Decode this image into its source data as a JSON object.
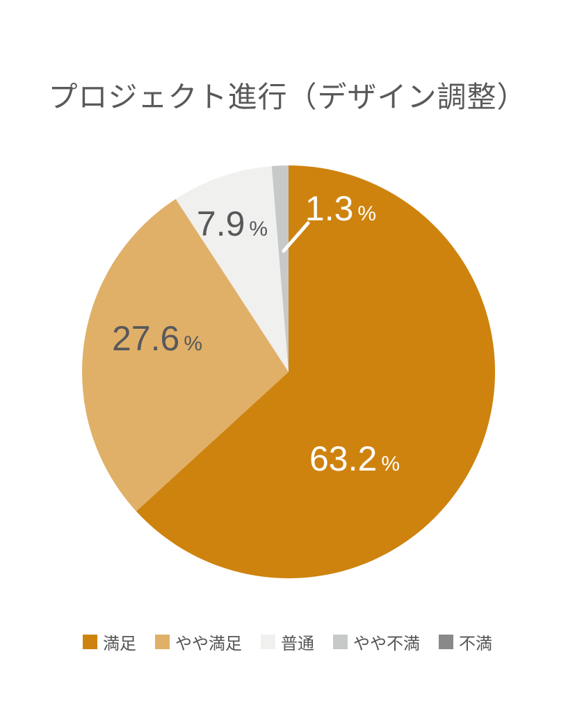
{
  "title": "プロジェクト進行（デザイン調整）",
  "chart_data": {
    "type": "pie",
    "title": "プロジェクト進行（デザイン調整）",
    "categories": [
      "満足",
      "やや満足",
      "普通",
      "やや不満",
      "不満"
    ],
    "values": [
      63.2,
      27.6,
      7.9,
      1.3,
      0.0
    ],
    "unit": "%",
    "colors": [
      "#ce830f",
      "#e0b068",
      "#f0f0ee",
      "#c7c9c9",
      "#898989"
    ],
    "start_angle": "top",
    "direction": "clockwise",
    "legend_position": "bottom",
    "background": "#ffffff",
    "title_color": "#595959",
    "slice_labels": [
      {
        "value": "63.2",
        "suffix": "%",
        "text_color": "#ffffff",
        "leader_line": false
      },
      {
        "value": "27.6",
        "suffix": "%",
        "text_color": "#57585a",
        "leader_line": false
      },
      {
        "value": "7.9",
        "suffix": "%",
        "text_color": "#57585a",
        "leader_line": false
      },
      {
        "value": "1.3",
        "suffix": "%",
        "text_color": "#ffffff",
        "leader_line": true
      }
    ],
    "leader_line_color": "#ffffff"
  }
}
